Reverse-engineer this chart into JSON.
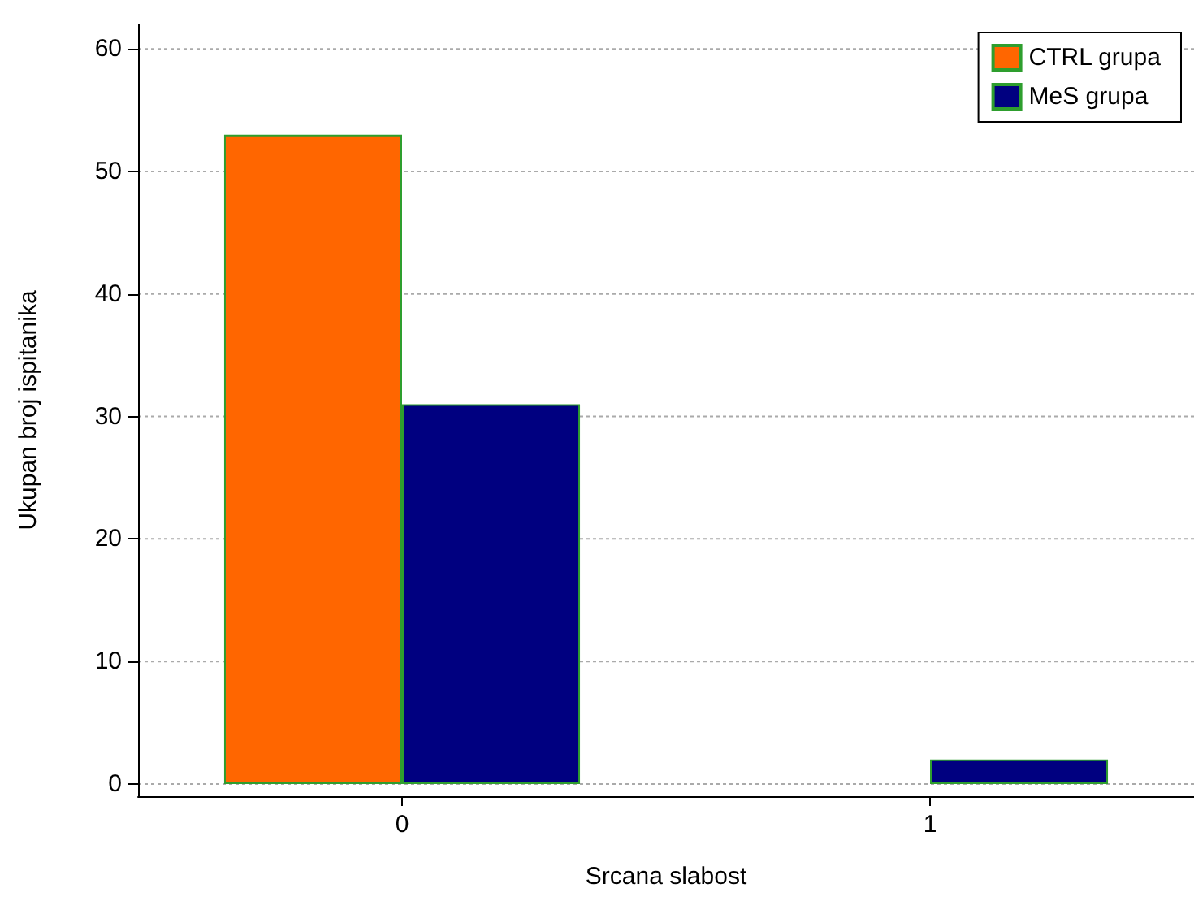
{
  "chart_data": {
    "type": "bar",
    "xlabel": "Srcana slabost",
    "ylabel": "Ukupan broj ispitanika",
    "categories": [
      "0",
      "1"
    ],
    "series": [
      {
        "name": "CTRL grupa",
        "color": "#ff6600",
        "values": [
          53,
          null
        ]
      },
      {
        "name": "MeS grupa",
        "color": "#000080",
        "values": [
          31,
          2
        ]
      }
    ],
    "ylim": [
      -1,
      62
    ],
    "yticks": [
      0,
      10,
      20,
      30,
      40,
      50,
      60
    ],
    "grid": "y",
    "legend": "top right"
  }
}
